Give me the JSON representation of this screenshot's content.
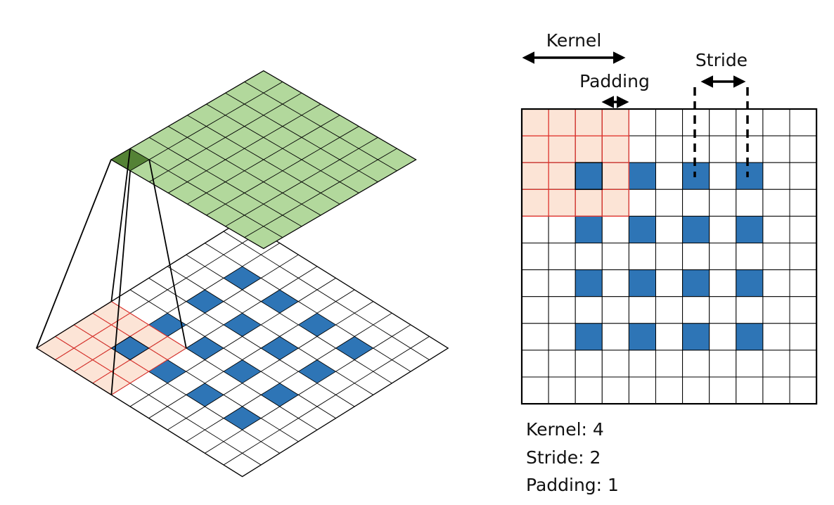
{
  "labels": {
    "kernel": "Kernel",
    "padding": "Padding",
    "stride": "Stride"
  },
  "params": {
    "kernel_line": "Kernel: 4",
    "stride_line": "Stride: 2",
    "padding_line": "Padding: 1"
  },
  "grid": {
    "input_padded_size": 11,
    "output_size": 8,
    "kernel": 4,
    "stride": 2,
    "padding": 1,
    "input_cells": [
      [
        2,
        2
      ],
      [
        2,
        4
      ],
      [
        2,
        6
      ],
      [
        2,
        8
      ],
      [
        4,
        2
      ],
      [
        4,
        4
      ],
      [
        4,
        6
      ],
      [
        4,
        8
      ],
      [
        6,
        2
      ],
      [
        6,
        4
      ],
      [
        6,
        6
      ],
      [
        6,
        8
      ],
      [
        8,
        2
      ],
      [
        8,
        4
      ],
      [
        8,
        6
      ],
      [
        8,
        8
      ]
    ],
    "receptive_field": {
      "row": 0,
      "col": 0
    }
  },
  "colors": {
    "input_cell": "#2e75b6",
    "kernel_fill": "#fce4d6",
    "kernel_line": "#e8302a",
    "output_fill": "#b2d89c",
    "output_active": "#548235",
    "grid_line": "#000000"
  }
}
